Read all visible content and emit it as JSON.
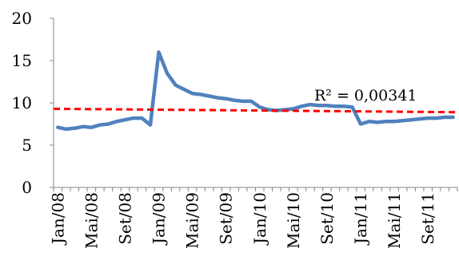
{
  "chart_data": {
    "type": "line",
    "title": "",
    "xlabel": "",
    "ylabel": "",
    "ylim": [
      0,
      20
    ],
    "y_ticks": [
      0,
      5,
      10,
      15,
      20
    ],
    "x_tick_labels": [
      "Jan/08",
      "Mai/08",
      "Set/08",
      "Jan/09",
      "Mai/09",
      "Set/09",
      "Jan/10",
      "Mai/10",
      "Set/10",
      "Jan/11",
      "Mai/11",
      "Set/11"
    ],
    "grid": false,
    "legend": "none",
    "series": [
      {
        "color": "#4f81bd",
        "x": [
          "Jan/08",
          "Fev/08",
          "Mar/08",
          "Abr/08",
          "Mai/08",
          "Jun/08",
          "Jul/08",
          "Ago/08",
          "Set/08",
          "Out/08",
          "Nov/08",
          "Dez/08",
          "Jan/09",
          "Fev/09",
          "Mar/09",
          "Abr/09",
          "Mai/09",
          "Jun/09",
          "Jul/09",
          "Ago/09",
          "Set/09",
          "Out/09",
          "Nov/09",
          "Dez/09",
          "Jan/10",
          "Fev/10",
          "Mar/10",
          "Abr/10",
          "Mai/10",
          "Jun/10",
          "Jul/10",
          "Ago/10",
          "Set/10",
          "Out/10",
          "Nov/10",
          "Dez/10",
          "Jan/11",
          "Fev/11",
          "Mar/11",
          "Abr/11",
          "Mai/11",
          "Jun/11",
          "Jul/11",
          "Ago/11",
          "Set/11",
          "Out/11",
          "Nov/11",
          "Dez/11"
        ],
        "values": [
          7.1,
          6.9,
          7.0,
          7.2,
          7.1,
          7.4,
          7.5,
          7.8,
          8.0,
          8.2,
          8.2,
          7.4,
          16.0,
          13.5,
          12.1,
          11.6,
          11.1,
          11.0,
          10.8,
          10.6,
          10.5,
          10.3,
          10.2,
          10.2,
          9.5,
          9.2,
          9.1,
          9.2,
          9.3,
          9.6,
          9.8,
          9.7,
          9.7,
          9.6,
          9.6,
          9.5,
          7.5,
          7.8,
          7.7,
          7.8,
          7.8,
          7.9,
          8.0,
          8.1,
          8.2,
          8.2,
          8.3,
          8.3
        ]
      }
    ],
    "trendline": {
      "color": "#ff0000",
      "start": 9.3,
      "end": 8.9,
      "label": "R² = 0,00341"
    }
  }
}
